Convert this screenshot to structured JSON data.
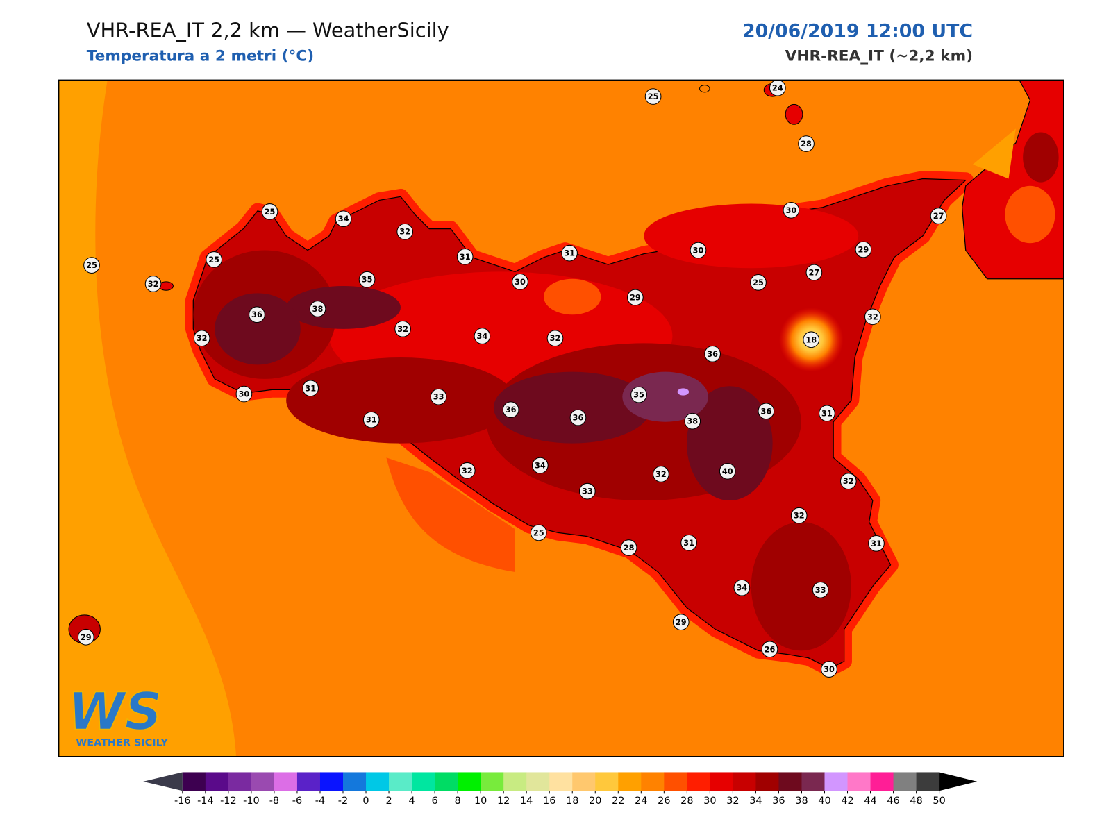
{
  "header": {
    "title": "VHR-REA_IT 2,2 km — WeatherSicily",
    "subtitle": "Temperatura a 2 metri (°C)",
    "datetime": "20/06/2019 12:00 UTC",
    "model": "VHR-REA_IT (~2,2 km)"
  },
  "stations": [
    25,
    24,
    28,
    25,
    34,
    32,
    31,
    31,
    30,
    30,
    27,
    29,
    25,
    25,
    32,
    35,
    30,
    29,
    25,
    27,
    32,
    36,
    38,
    32,
    34,
    32,
    18,
    36,
    32,
    30,
    31,
    33,
    36,
    36,
    35,
    38,
    36,
    31,
    31,
    32,
    34,
    33,
    32,
    40,
    32,
    32,
    25,
    28,
    31,
    31,
    34,
    33,
    29,
    26,
    30,
    29
  ],
  "colorbar": {
    "ticks": [
      -16,
      -14,
      -12,
      -10,
      -8,
      -6,
      -4,
      -2,
      0,
      2,
      4,
      6,
      8,
      10,
      12,
      14,
      16,
      18,
      20,
      22,
      24,
      26,
      28,
      30,
      32,
      34,
      36,
      38,
      40,
      42,
      44,
      46,
      48,
      50
    ],
    "colors": [
      "#3d0050",
      "#5a0a8a",
      "#7a2aa0",
      "#9a4ab0",
      "#dc6ee6",
      "#5a22c8",
      "#0a14ff",
      "#1478dc",
      "#00c8e6",
      "#5aebc8",
      "#00e6a0",
      "#00dc64",
      "#00f000",
      "#78eb3c",
      "#c8eb82",
      "#e1e69b",
      "#ffe1a0",
      "#ffc86e",
      "#ffc83c",
      "#ffa000",
      "#ff8200",
      "#ff5000",
      "#ff1e00",
      "#e60000",
      "#c80000",
      "#a00000",
      "#6e0a1e",
      "#7a2850",
      "#d296ff",
      "#ff78c8",
      "#ff1e96",
      "#808080",
      "#3c3c3c"
    ],
    "under_color": "#3a3a4a",
    "over_color": "#000000"
  },
  "logo": {
    "mark": "WS",
    "text": "WEATHER SICILY"
  }
}
